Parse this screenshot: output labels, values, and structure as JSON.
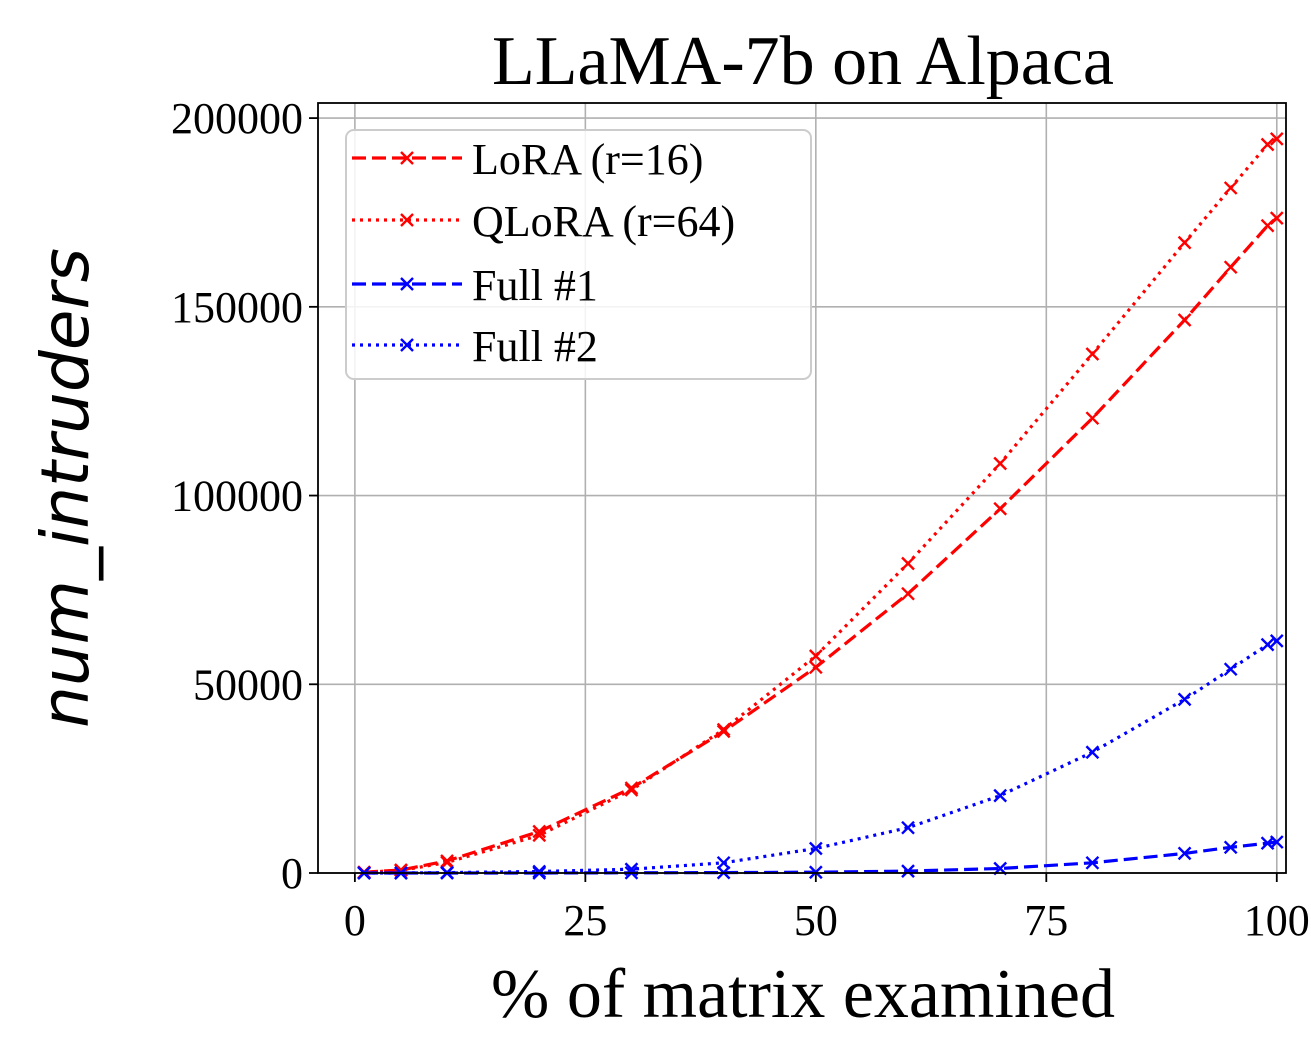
{
  "chart_data": {
    "type": "line",
    "title": "LLaMA-7b on Alpaca",
    "xlabel": "% of matrix examined",
    "ylabel": "num_intruders",
    "xlim": [
      -4,
      101
    ],
    "ylim": [
      0,
      204000
    ],
    "xticks": [
      0,
      25,
      50,
      75,
      100
    ],
    "yticks": [
      0,
      50000,
      100000,
      150000,
      200000
    ],
    "grid": true,
    "legend_position": "top-left",
    "series": [
      {
        "name": "LoRA (r=16)",
        "color": "#ff0000",
        "linestyle": "dashed",
        "marker": "x",
        "x": [
          1,
          5,
          10,
          20,
          30,
          40,
          50,
          60,
          70,
          80,
          90,
          95,
          99,
          100
        ],
        "y": [
          200,
          800,
          3200,
          11000,
          22500,
          37500,
          54500,
          74000,
          96500,
          120500,
          146500,
          160500,
          171500,
          173500
        ]
      },
      {
        "name": "QLoRA (r=64)",
        "color": "#ff0000",
        "linestyle": "dotted",
        "marker": "x",
        "x": [
          1,
          5,
          10,
          20,
          30,
          40,
          50,
          60,
          70,
          80,
          90,
          95,
          99,
          100
        ],
        "y": [
          200,
          700,
          2800,
          10000,
          22000,
          38000,
          57500,
          82000,
          108500,
          137500,
          167000,
          181500,
          193000,
          194500
        ]
      },
      {
        "name": "Full #1",
        "color": "#0000ff",
        "linestyle": "dashed",
        "marker": "x",
        "x": [
          1,
          5,
          10,
          20,
          30,
          40,
          50,
          60,
          70,
          80,
          90,
          95,
          99,
          100
        ],
        "y": [
          0,
          0,
          0,
          0,
          50,
          100,
          200,
          500,
          1200,
          2700,
          5200,
          6800,
          7900,
          8200
        ]
      },
      {
        "name": "Full #2",
        "color": "#0000ff",
        "linestyle": "dotted",
        "marker": "x",
        "x": [
          1,
          5,
          10,
          20,
          30,
          40,
          50,
          60,
          70,
          80,
          90,
          95,
          99,
          100
        ],
        "y": [
          0,
          0,
          100,
          400,
          1000,
          2700,
          6500,
          12000,
          20500,
          32000,
          46000,
          54000,
          60500,
          61500
        ]
      }
    ]
  }
}
